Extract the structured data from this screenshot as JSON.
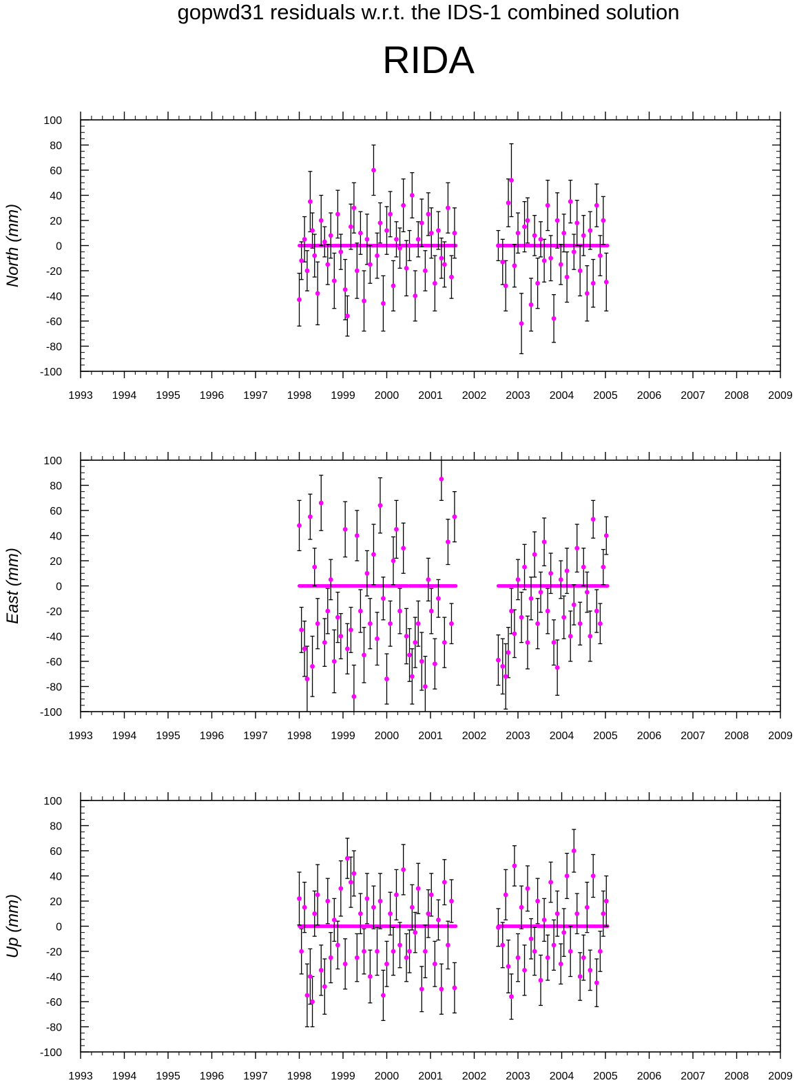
{
  "title": "gopwd31 residuals w.r.t. the IDS-1 combined solution",
  "station": "RIDA",
  "colors": {
    "marker": "#ff00ff",
    "errorbar": "#000000",
    "frame": "#000000",
    "background": "#ffffff"
  },
  "chart_data": [
    {
      "type": "scatter",
      "ylabel": "North (mm)",
      "xlim": [
        1993,
        2009
      ],
      "ylim": [
        -100,
        100
      ],
      "x_ticks": [
        1993,
        1994,
        1995,
        1996,
        1997,
        1998,
        1999,
        2000,
        2001,
        2002,
        2003,
        2004,
        2005,
        2006,
        2007,
        2008,
        2009
      ],
      "y_ticks": [
        -100,
        -80,
        -60,
        -40,
        -20,
        0,
        20,
        40,
        60,
        80,
        100
      ],
      "grid": false,
      "series": [
        {
          "x": [
            1998.0,
            1998.05,
            1998.12,
            1998.18,
            1998.25,
            1998.3,
            1998.35,
            1998.42,
            1998.5,
            1998.58,
            1998.65,
            1998.72,
            1998.8,
            1998.88,
            1998.95,
            1999.05,
            1999.1,
            1999.18,
            1999.25,
            1999.32,
            1999.4,
            1999.48,
            1999.55,
            1999.62,
            1999.7,
            1999.78,
            1999.85,
            1999.92,
            2000.0,
            2000.08,
            2000.15,
            2000.22,
            2000.3,
            2000.38,
            2000.45,
            2000.52,
            2000.58,
            2000.65,
            2000.72,
            2000.8,
            2000.88,
            2000.95,
            2001.02,
            2001.1,
            2001.18,
            2001.25,
            2001.32,
            2001.4,
            2001.48,
            2001.55,
            2002.55,
            2002.65,
            2002.72,
            2002.78,
            2002.85,
            2002.92,
            2003.0,
            2003.08,
            2003.15,
            2003.22,
            2003.3,
            2003.38,
            2003.45,
            2003.52,
            2003.6,
            2003.68,
            2003.75,
            2003.82,
            2003.9,
            2003.98,
            2004.05,
            2004.12,
            2004.2,
            2004.28,
            2004.35,
            2004.42,
            2004.5,
            2004.58,
            2004.65,
            2004.72,
            2004.8,
            2004.88,
            2004.95,
            2005.02
          ],
          "y": [
            -43,
            -12,
            5,
            -20,
            35,
            12,
            -8,
            -38,
            20,
            3,
            -15,
            8,
            -28,
            25,
            -5,
            -35,
            -56,
            15,
            30,
            -20,
            10,
            -44,
            5,
            -15,
            60,
            -8,
            18,
            -46,
            12,
            25,
            -32,
            5,
            -2,
            32,
            -18,
            0,
            40,
            -40,
            5,
            18,
            -20,
            25,
            10,
            -30,
            12,
            -10,
            -15,
            30,
            -25,
            10,
            0,
            -13,
            -32,
            34,
            52,
            -16,
            10,
            -62,
            15,
            20,
            -47,
            8,
            -30,
            5,
            -12,
            32,
            -10,
            -58,
            20,
            -15,
            10,
            -25,
            35,
            -5,
            18,
            -20,
            8,
            -38,
            12,
            -30,
            32,
            -8,
            20,
            -29
          ],
          "err": [
            21,
            15,
            18,
            16,
            24,
            14,
            17,
            25,
            20,
            12,
            16,
            18,
            22,
            19,
            14,
            24,
            16,
            18,
            20,
            22,
            17,
            24,
            20,
            15,
            20,
            18,
            16,
            22,
            19,
            18,
            20,
            14,
            16,
            21,
            22,
            12,
            18,
            20,
            14,
            19,
            16,
            17,
            20,
            22,
            15,
            16,
            18,
            20,
            17,
            20,
            12,
            18,
            20,
            19,
            29,
            17,
            16,
            24,
            20,
            18,
            21,
            16,
            20,
            14,
            17,
            20,
            18,
            19,
            22,
            16,
            15,
            20,
            17,
            14,
            18,
            20,
            16,
            22,
            15,
            19,
            17,
            16,
            19,
            23
          ]
        }
      ]
    },
    {
      "type": "scatter",
      "ylabel": "East (mm)",
      "xlim": [
        1993,
        2009
      ],
      "ylim": [
        -100,
        100
      ],
      "x_ticks": [
        1993,
        1994,
        1995,
        1996,
        1997,
        1998,
        1999,
        2000,
        2001,
        2002,
        2003,
        2004,
        2005,
        2006,
        2007,
        2008,
        2009
      ],
      "y_ticks": [
        -100,
        -80,
        -60,
        -40,
        -20,
        0,
        20,
        40,
        60,
        80,
        100
      ],
      "grid": false,
      "series": [
        {
          "x": [
            1998.0,
            1998.05,
            1998.12,
            1998.18,
            1998.25,
            1998.3,
            1998.35,
            1998.42,
            1998.5,
            1998.58,
            1998.65,
            1998.72,
            1998.8,
            1998.88,
            1998.95,
            1999.05,
            1999.1,
            1999.18,
            1999.25,
            1999.32,
            1999.4,
            1999.48,
            1999.55,
            1999.62,
            1999.7,
            1999.78,
            1999.85,
            1999.92,
            2000.0,
            2000.08,
            2000.15,
            2000.22,
            2000.3,
            2000.38,
            2000.45,
            2000.52,
            2000.58,
            2000.65,
            2000.72,
            2000.8,
            2000.88,
            2000.95,
            2001.02,
            2001.1,
            2001.18,
            2001.25,
            2001.32,
            2001.4,
            2001.48,
            2001.55,
            2002.55,
            2002.65,
            2002.72,
            2002.78,
            2002.85,
            2002.92,
            2003.0,
            2003.08,
            2003.15,
            2003.22,
            2003.3,
            2003.38,
            2003.45,
            2003.52,
            2003.6,
            2003.68,
            2003.75,
            2003.82,
            2003.9,
            2003.98,
            2004.05,
            2004.12,
            2004.2,
            2004.28,
            2004.35,
            2004.42,
            2004.5,
            2004.58,
            2004.65,
            2004.72,
            2004.8,
            2004.88,
            2004.95,
            2005.02
          ],
          "y": [
            48,
            -35,
            -50,
            -74,
            55,
            -64,
            15,
            -30,
            66,
            -45,
            -20,
            5,
            -60,
            -25,
            -40,
            45,
            -50,
            -35,
            -88,
            40,
            -20,
            -55,
            10,
            -30,
            25,
            -42,
            64,
            -10,
            -74,
            -30,
            20,
            45,
            -20,
            30,
            -40,
            -55,
            -72,
            -45,
            -30,
            -60,
            -80,
            5,
            -20,
            -62,
            -10,
            85,
            -45,
            35,
            -30,
            55,
            -59,
            -64,
            -72,
            -53,
            -20,
            -38,
            5,
            -25,
            15,
            -45,
            -10,
            25,
            -30,
            -5,
            35,
            -20,
            10,
            -45,
            -65,
            5,
            -25,
            12,
            -40,
            -15,
            30,
            -30,
            15,
            -5,
            -40,
            53,
            -20,
            -30,
            15,
            40
          ],
          "err": [
            20,
            18,
            22,
            26,
            18,
            24,
            15,
            20,
            22,
            19,
            18,
            16,
            25,
            20,
            18,
            22,
            20,
            18,
            25,
            20,
            17,
            22,
            18,
            20,
            24,
            21,
            22,
            17,
            20,
            18,
            19,
            23,
            18,
            20,
            22,
            21,
            22,
            20,
            18,
            23,
            24,
            17,
            18,
            20,
            15,
            17,
            20,
            18,
            16,
            20,
            20,
            22,
            26,
            20,
            18,
            19,
            16,
            20,
            18,
            21,
            17,
            18,
            20,
            16,
            19,
            18,
            16,
            18,
            22,
            15,
            17,
            18,
            20,
            16,
            19,
            17,
            15,
            16,
            20,
            15,
            17,
            16,
            14,
            15
          ]
        }
      ]
    },
    {
      "type": "scatter",
      "ylabel": "Up (mm)",
      "xlim": [
        1993,
        2009
      ],
      "ylim": [
        -100,
        100
      ],
      "x_ticks": [
        1993,
        1994,
        1995,
        1996,
        1997,
        1998,
        1999,
        2000,
        2001,
        2002,
        2003,
        2004,
        2005,
        2006,
        2007,
        2008,
        2009
      ],
      "y_ticks": [
        -100,
        -80,
        -60,
        -40,
        -20,
        0,
        20,
        40,
        60,
        80,
        100
      ],
      "grid": false,
      "series": [
        {
          "x": [
            1998.0,
            1998.05,
            1998.12,
            1998.18,
            1998.25,
            1998.3,
            1998.35,
            1998.42,
            1998.5,
            1998.58,
            1998.65,
            1998.72,
            1998.8,
            1998.88,
            1998.95,
            1999.05,
            1999.1,
            1999.18,
            1999.25,
            1999.32,
            1999.4,
            1999.48,
            1999.55,
            1999.62,
            1999.7,
            1999.78,
            1999.85,
            1999.92,
            2000.0,
            2000.08,
            2000.15,
            2000.22,
            2000.3,
            2000.38,
            2000.45,
            2000.52,
            2000.58,
            2000.65,
            2000.72,
            2000.8,
            2000.88,
            2000.95,
            2001.02,
            2001.1,
            2001.18,
            2001.25,
            2001.32,
            2001.4,
            2001.48,
            2001.55,
            2002.55,
            2002.65,
            2002.72,
            2002.78,
            2002.85,
            2002.92,
            2003.0,
            2003.08,
            2003.15,
            2003.22,
            2003.3,
            2003.38,
            2003.45,
            2003.52,
            2003.6,
            2003.68,
            2003.75,
            2003.82,
            2003.9,
            2003.98,
            2004.05,
            2004.12,
            2004.2,
            2004.28,
            2004.35,
            2004.42,
            2004.5,
            2004.58,
            2004.65,
            2004.72,
            2004.8,
            2004.88,
            2004.95,
            2005.02
          ],
          "y": [
            22,
            -20,
            15,
            -55,
            -40,
            -60,
            10,
            25,
            -35,
            -48,
            20,
            -25,
            5,
            -15,
            30,
            -30,
            54,
            35,
            42,
            -25,
            10,
            -20,
            22,
            -40,
            15,
            -20,
            20,
            -55,
            -30,
            10,
            -20,
            25,
            -15,
            45,
            -25,
            -20,
            15,
            -5,
            30,
            -50,
            -20,
            10,
            25,
            -30,
            5,
            -50,
            35,
            -15,
            20,
            -49,
            -1,
            -15,
            25,
            -32,
            -56,
            48,
            -25,
            15,
            -35,
            30,
            -10,
            -20,
            20,
            -43,
            5,
            -25,
            35,
            -15,
            10,
            -30,
            -5,
            40,
            -20,
            60,
            10,
            -40,
            -25,
            15,
            -35,
            40,
            -45,
            -20,
            10,
            20
          ],
          "err": [
            21,
            18,
            20,
            25,
            22,
            20,
            18,
            24,
            20,
            22,
            18,
            20,
            17,
            19,
            22,
            20,
            16,
            20,
            18,
            19,
            16,
            18,
            20,
            21,
            17,
            19,
            22,
            20,
            18,
            17,
            19,
            20,
            18,
            20,
            19,
            17,
            18,
            16,
            20,
            18,
            21,
            19,
            17,
            18,
            16,
            20,
            18,
            19,
            17,
            20,
            15,
            18,
            20,
            21,
            18,
            16,
            19,
            17,
            20,
            18,
            16,
            19,
            18,
            20,
            17,
            18,
            16,
            20,
            18,
            16,
            19,
            18,
            20,
            17,
            16,
            19,
            18,
            20,
            16,
            17,
            19,
            16,
            18,
            20
          ]
        }
      ]
    }
  ]
}
